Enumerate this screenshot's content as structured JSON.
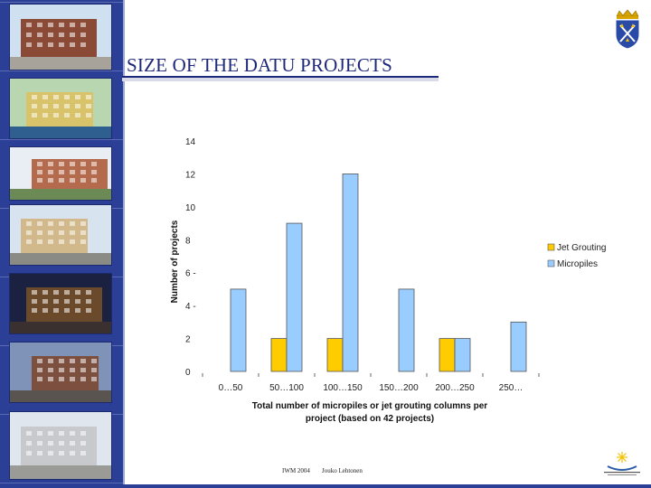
{
  "slide": {
    "title": "SIZE OF THE DATU PROJECTS",
    "footer_event": "IWM 2004",
    "footer_author": "Jouko Lehtonen"
  },
  "photos": [
    {
      "name": "photo-brick-building",
      "sky": "#cfe0f0",
      "bldg": "#8a4a35",
      "ground": "#a7a39a"
    },
    {
      "name": "photo-riverside-buildings",
      "sky": "#b8d6b0",
      "bldg": "#d9c36a",
      "ground": "#2f5f8e"
    },
    {
      "name": "photo-ornate-building",
      "sky": "#e8eef3",
      "bldg": "#b46a4c",
      "ground": "#6b8a55"
    },
    {
      "name": "photo-church-street",
      "sky": "#d7e3ee",
      "bldg": "#d2b98b",
      "ground": "#8b8b86"
    },
    {
      "name": "photo-night-street",
      "sky": "#1b2140",
      "bldg": "#6a4a2a",
      "ground": "#3a3030"
    },
    {
      "name": "photo-dusk-buildings",
      "sky": "#7f93b8",
      "bldg": "#7c4f3f",
      "ground": "#5a5450"
    },
    {
      "name": "photo-modern-block",
      "sky": "#dfe6ee",
      "bldg": "#c7c9cc",
      "ground": "#9a9a96"
    }
  ],
  "chart_data": {
    "type": "bar",
    "categories": [
      "0…50",
      "50…100",
      "100…150",
      "150…200",
      "200…250",
      "250…"
    ],
    "series": [
      {
        "name": "Jet Grouting",
        "color": "#ffcc00",
        "values": [
          0,
          2,
          2,
          0,
          2,
          0
        ]
      },
      {
        "name": "Micropiles",
        "color": "#99ccff",
        "values": [
          5,
          9,
          12,
          5,
          2,
          3
        ]
      }
    ],
    "ylabel": "Number of projects",
    "xlabel_lines": [
      "Total number of micropiles or jet grouting columns per",
      "project (based on 42 projects)"
    ],
    "ylim": [
      0,
      14
    ],
    "yticks": [
      "0",
      "2",
      "4 -",
      "6 -",
      "8",
      "10",
      "12",
      "14"
    ],
    "grid": false,
    "legend_position": "right"
  }
}
